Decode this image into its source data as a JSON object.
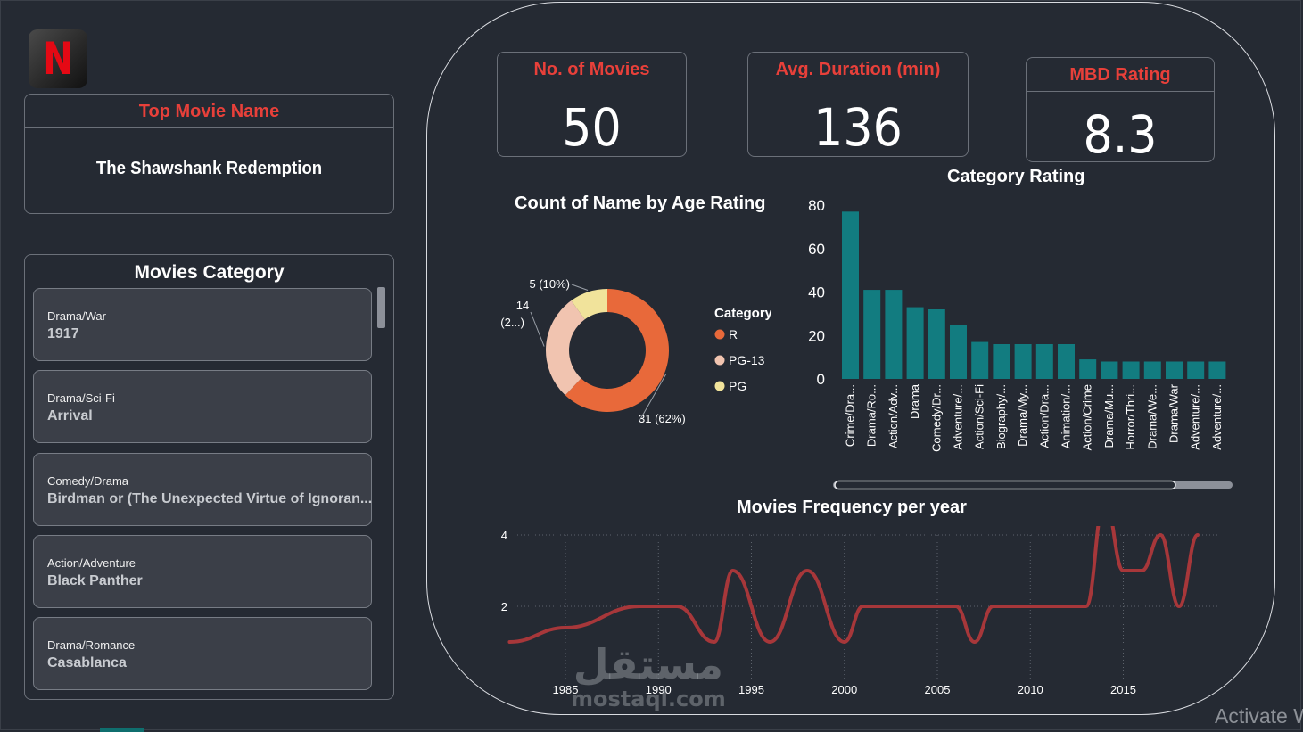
{
  "brand": {
    "logo_letter": "N"
  },
  "top_movie": {
    "title": "Top Movie Name",
    "value": "The Shawshank Redemption"
  },
  "categories_panel": {
    "title": "Movies Category",
    "items": [
      {
        "genre": "Drama/War",
        "movie": "1917"
      },
      {
        "genre": "Drama/Sci-Fi",
        "movie": "Arrival"
      },
      {
        "genre": "Comedy/Drama",
        "movie": "Birdman or (The Unexpected Virtue of Ignoran..."
      },
      {
        "genre": "Action/Adventure",
        "movie": "Black Panther"
      },
      {
        "genre": "Drama/Romance",
        "movie": "Casablanca"
      }
    ]
  },
  "kpis": [
    {
      "label": "No. of Movies",
      "value": "50"
    },
    {
      "label": "Avg. Duration (min)",
      "value": "136"
    },
    {
      "label": "MBD Rating",
      "value": "8.3"
    }
  ],
  "colors": {
    "accent_red": "#e8403a",
    "teal": "#127c80",
    "line_red": "#a7373a",
    "donut_r": "#e8693a",
    "donut_pg13": "#f1c4b0",
    "donut_pg": "#f1e39b"
  },
  "chart_data": [
    {
      "type": "pie",
      "title": "Count of Name by Age Rating",
      "legend_title": "Category",
      "legend_position": "right",
      "categories": [
        "R",
        "PG-13",
        "PG"
      ],
      "values": [
        31,
        14,
        5
      ],
      "labels": [
        "31 (62%)",
        "14 (2...)",
        "5 (10%)"
      ]
    },
    {
      "type": "bar",
      "title": "Category Rating",
      "categories": [
        "Crime/Dra...",
        "Drama/Ro...",
        "Action/Adv...",
        "Drama",
        "Comedy/Dr...",
        "Adventure/...",
        "Action/Sci-Fi",
        "Biography/...",
        "Drama/My...",
        "Action/Dra...",
        "Animation/...",
        "Action/Crime",
        "Drama/Mu...",
        "Horror/Thri...",
        "Drama/We...",
        "Drama/War",
        "Adventure/...",
        "Adventure/..."
      ],
      "values": [
        77,
        41,
        41,
        33,
        32,
        25,
        17,
        16,
        16,
        16,
        16,
        9,
        8,
        8,
        8,
        8,
        8,
        8
      ],
      "ylim": [
        0,
        80
      ],
      "yticks": [
        "0",
        "20",
        "40",
        "60",
        "80"
      ],
      "grid": false
    },
    {
      "type": "line",
      "title": "Movies Frequency per year",
      "x": [
        1982,
        1985,
        1989,
        1991,
        1993,
        1994,
        1996,
        1998,
        2000,
        2001,
        2003,
        2006,
        2007,
        2008,
        2013,
        2014,
        2015,
        2016,
        2017,
        2018,
        2019
      ],
      "values": [
        1,
        1.4,
        2,
        2,
        1,
        3,
        1,
        3,
        1,
        2,
        2,
        2,
        1,
        2,
        2,
        5,
        3,
        3,
        4,
        2,
        4
      ],
      "xticks": [
        "1985",
        "1990",
        "1995",
        "2000",
        "2005",
        "2010",
        "2015"
      ],
      "yticks": [
        "2",
        "4"
      ],
      "grid": true
    }
  ],
  "system": {
    "watermark_ar": "مستقل",
    "watermark_en": "mostaql.com",
    "activate": "Activate W"
  }
}
